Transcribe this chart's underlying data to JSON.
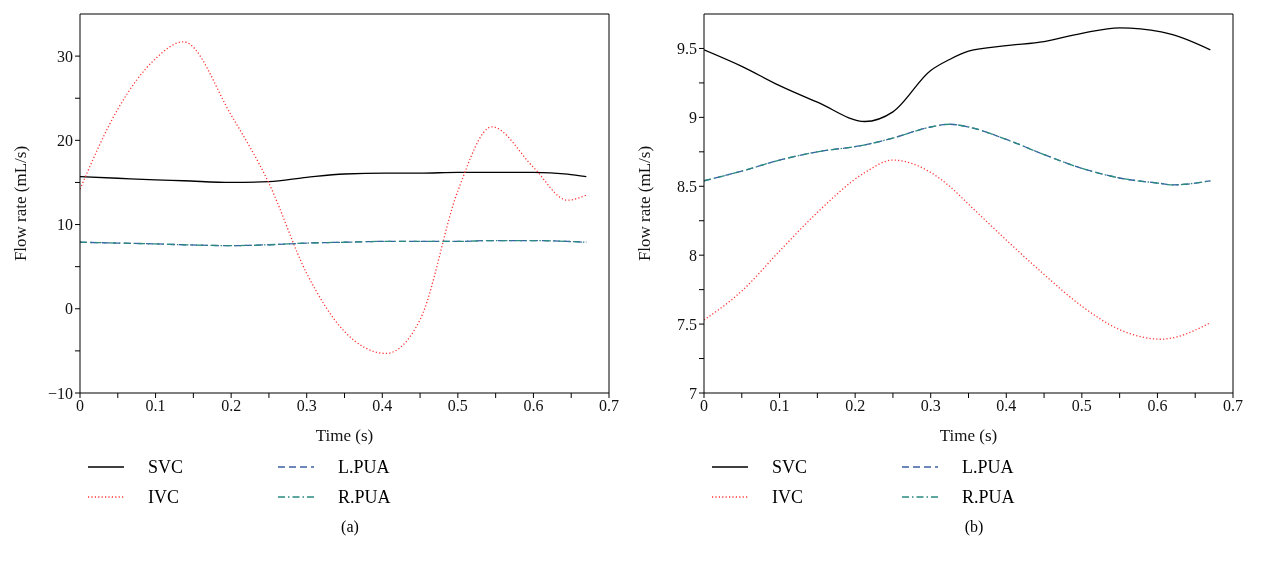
{
  "chart_data": [
    {
      "type": "line",
      "xlabel": "Time (s)",
      "ylabel": "Flow rate (mL/s)",
      "legend": "bottom",
      "annotations": [
        "(a)"
      ],
      "x": [
        0,
        0.05,
        0.1,
        0.137,
        0.2,
        0.25,
        0.3,
        0.35,
        0.405,
        0.45,
        0.5,
        0.545,
        0.6,
        0.645,
        0.67
      ],
      "xlim": [
        0,
        0.7
      ],
      "xticks": [
        0,
        {
          "value": 0.05,
          "label": null
        },
        0.1,
        {
          "value": 0.15,
          "label": null
        },
        0.2,
        {
          "value": 0.25,
          "label": null
        },
        0.3,
        {
          "value": 0.35,
          "label": null
        },
        0.4,
        {
          "value": 0.45,
          "label": null
        },
        0.5,
        {
          "value": 0.55,
          "label": null
        },
        0.6,
        {
          "value": 0.65,
          "label": null
        },
        0.7
      ],
      "ylim": [
        -10,
        35
      ],
      "yticks": [
        {
          "value": -10,
          "label": "−10"
        },
        {
          "value": -5,
          "label": null
        },
        0,
        {
          "value": 5,
          "label": null
        },
        10,
        {
          "value": 15,
          "label": null
        },
        20,
        {
          "value": 25,
          "label": null
        },
        30
      ],
      "series": [
        {
          "name": "SVC",
          "color": "#000000",
          "line_style": "solid",
          "values": [
            15.7,
            15.5,
            15.3,
            15.2,
            15.0,
            15.1,
            15.6,
            16.0,
            16.1,
            16.1,
            16.2,
            16.2,
            16.2,
            16.0,
            15.7
          ]
        },
        {
          "name": "IVC",
          "color": "#ff3333",
          "line_style": "dotted",
          "values": [
            14.2,
            23.7,
            29.7,
            31.7,
            23.0,
            14.9,
            4.2,
            -2.7,
            -5.3,
            -1.3,
            14.0,
            21.6,
            16.8,
            12.9,
            13.5
          ]
        },
        {
          "name": "L.PUA",
          "color": "#3a5fa8",
          "line_style": "dashed",
          "values": [
            7.9,
            7.8,
            7.7,
            7.6,
            7.5,
            7.6,
            7.8,
            7.9,
            8.0,
            8.0,
            8.0,
            8.1,
            8.1,
            8.0,
            7.9
          ]
        },
        {
          "name": "R.PUA",
          "color": "#2a8a80",
          "line_style": "dashdot",
          "values": [
            7.9,
            7.8,
            7.7,
            7.6,
            7.5,
            7.6,
            7.8,
            7.9,
            8.0,
            8.0,
            8.0,
            8.1,
            8.1,
            8.0,
            7.9
          ]
        }
      ]
    },
    {
      "type": "line",
      "xlabel": "Time (s)",
      "ylabel": "Flow rate (mL/s)",
      "legend": "bottom",
      "annotations": [
        "(b)"
      ],
      "x": [
        0,
        0.05,
        0.1,
        0.15,
        0.213,
        0.25,
        0.3,
        0.325,
        0.35,
        0.4,
        0.45,
        0.5,
        0.55,
        0.605,
        0.62,
        0.67
      ],
      "xlim": [
        0,
        0.7
      ],
      "xticks": [
        0,
        {
          "value": 0.05,
          "label": null
        },
        0.1,
        {
          "value": 0.15,
          "label": null
        },
        0.2,
        {
          "value": 0.25,
          "label": null
        },
        0.3,
        {
          "value": 0.35,
          "label": null
        },
        0.4,
        {
          "value": 0.45,
          "label": null
        },
        0.5,
        {
          "value": 0.55,
          "label": null
        },
        0.6,
        {
          "value": 0.65,
          "label": null
        },
        0.7
      ],
      "ylim": [
        7,
        9.75
      ],
      "yticks": [
        7,
        {
          "value": 7.25,
          "label": null
        },
        7.5,
        {
          "value": 7.75,
          "label": null
        },
        8,
        {
          "value": 8.25,
          "label": null
        },
        8.5,
        {
          "value": 8.75,
          "label": null
        },
        9,
        {
          "value": 9.25,
          "label": null
        },
        9.5
      ],
      "series": [
        {
          "name": "SVC",
          "color": "#000000",
          "line_style": "solid",
          "values": [
            9.49,
            9.37,
            9.23,
            9.11,
            8.97,
            9.04,
            9.34,
            9.42,
            9.48,
            9.52,
            9.55,
            9.61,
            9.65,
            9.62,
            9.6,
            9.49
          ]
        },
        {
          "name": "IVC",
          "color": "#ff3333",
          "line_style": "dotted",
          "values": [
            7.53,
            7.74,
            8.03,
            8.31,
            8.6,
            8.69,
            8.6,
            8.5,
            8.37,
            8.11,
            7.86,
            7.63,
            7.46,
            7.39,
            7.4,
            7.51
          ]
        },
        {
          "name": "L.PUA",
          "color": "#3a5fa8",
          "line_style": "dashed",
          "values": [
            8.54,
            8.61,
            8.69,
            8.75,
            8.8,
            8.85,
            8.93,
            8.95,
            8.93,
            8.84,
            8.73,
            8.63,
            8.56,
            8.52,
            8.51,
            8.54
          ]
        },
        {
          "name": "R.PUA",
          "color": "#2a8a80",
          "line_style": "dashdot",
          "values": [
            8.54,
            8.61,
            8.69,
            8.75,
            8.8,
            8.85,
            8.93,
            8.95,
            8.93,
            8.84,
            8.73,
            8.63,
            8.56,
            8.52,
            8.51,
            8.54
          ]
        }
      ]
    }
  ]
}
